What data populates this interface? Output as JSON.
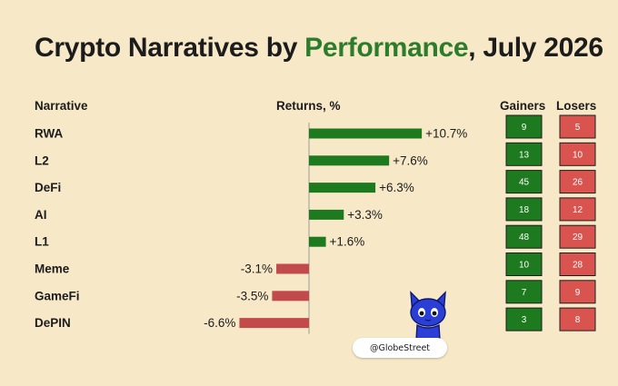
{
  "title": {
    "prefix": "Crypto Narratives by ",
    "highlight": "Performance",
    "suffix": ", July 2026"
  },
  "headers": {
    "narrative": "Narrative",
    "returns": "Returns, %",
    "gainers": "Gainers",
    "losers": "Losers"
  },
  "chart_data": {
    "type": "bar",
    "orientation": "horizontal",
    "title": "Crypto Narratives by Performance, July 2026",
    "xlabel": "Returns, %",
    "categories": [
      "RWA",
      "L2",
      "DeFi",
      "AI",
      "L1",
      "Meme",
      "GameFi",
      "DePIN"
    ],
    "values": [
      10.7,
      7.6,
      6.3,
      3.3,
      1.6,
      -3.1,
      -3.5,
      -6.6
    ],
    "value_labels": [
      "+10.7%",
      "+7.6%",
      "+6.3%",
      "+3.3%",
      "+1.6%",
      "-3.1%",
      "-3.5%",
      "-6.6%"
    ],
    "gainers": [
      9,
      13,
      45,
      18,
      48,
      10,
      7,
      3
    ],
    "losers": [
      5,
      10,
      26,
      12,
      29,
      28,
      9,
      8
    ],
    "colors": {
      "positive": "#1e7a1e",
      "negative": "#c24a4a",
      "gainer_box": "#1e7a1e",
      "loser_box": "#d9534f"
    }
  },
  "watermark": "@GlobeStreet",
  "mascot": "blue-cat-mascot-icon"
}
